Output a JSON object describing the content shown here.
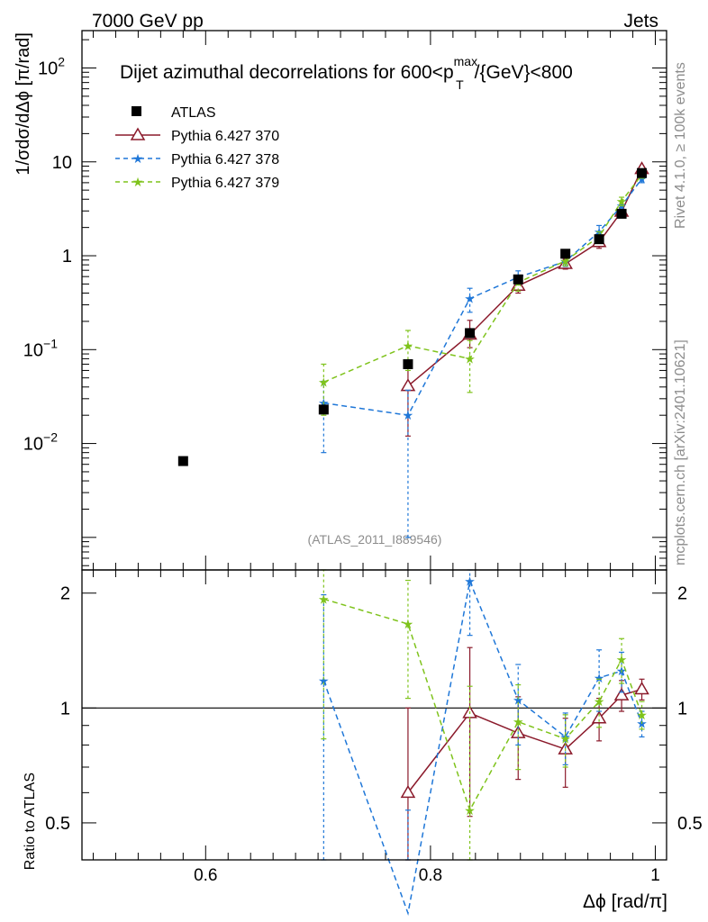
{
  "chart_data": {
    "type": "line",
    "header_left": "7000 GeV pp",
    "header_right": "Jets",
    "title_prefix": "Dijet azimuthal decorrelations for 600<p",
    "title_sup": "max",
    "title_sub": "T",
    "title_suffix": "/{GeV}<800",
    "side_rivet": "Rivet 4.1.0, ≥ 100k events",
    "side_mcplots": "mcplots.cern.ch [arXiv:2401.10621]",
    "analysis_tag": "(ATLAS_2011_I889546)",
    "ylabel": "1/σdσ/dΔϕ [π/rad]",
    "ratio_ylabel": "Ratio to ATLAS",
    "xlabel": "Δϕ [rad/π]",
    "xlim": [
      0.49,
      1.01
    ],
    "ylim": [
      0.00045,
      250
    ],
    "ratio_ylim": [
      0.4,
      2.3
    ],
    "x_ticks": [
      {
        "v": 0.6,
        "label": "0.6"
      },
      {
        "v": 0.8,
        "label": "0.8"
      },
      {
        "v": 1.0,
        "label": "1"
      }
    ],
    "y_ticks": [
      {
        "v": 0.01,
        "base": "10",
        "exp": "−2"
      },
      {
        "v": 0.1,
        "base": "10",
        "exp": "−1"
      },
      {
        "v": 1,
        "base": "1",
        "exp": ""
      },
      {
        "v": 10,
        "base": "10",
        "exp": ""
      },
      {
        "v": 100,
        "base": "10",
        "exp": "2"
      }
    ],
    "ratio_ticks": [
      {
        "v": 0.5,
        "label": "0.5"
      },
      {
        "v": 1,
        "label": "1"
      },
      {
        "v": 2,
        "label": "2"
      }
    ],
    "legend": {
      "data_label": "ATLAS",
      "entries": [
        "Pythia 6.427 370",
        "Pythia 6.427 378",
        "Pythia 6.427 379"
      ]
    },
    "data": {
      "name": "ATLAS",
      "x": [
        0.58,
        0.705,
        0.78,
        0.835,
        0.878,
        0.92,
        0.95,
        0.97,
        0.988
      ],
      "y": [
        0.0065,
        0.023,
        0.07,
        0.15,
        0.56,
        1.05,
        1.5,
        2.8,
        7.6
      ]
    },
    "series": [
      {
        "name": "Pythia 6.427 370",
        "color": "#8b1a2b",
        "dash": "",
        "marker": "triangle",
        "x": [
          0.78,
          0.835,
          0.878,
          0.92,
          0.95,
          0.97,
          0.988
        ],
        "y": [
          0.041,
          0.145,
          0.48,
          0.82,
          1.4,
          2.95,
          8.4
        ],
        "yerr_lo": [
          0.029,
          0.04,
          0.08,
          0.1,
          0.2,
          0.3,
          0.6
        ],
        "yerr_hi": [
          0.025,
          0.06,
          0.09,
          0.1,
          0.2,
          0.3,
          0.6
        ],
        "ratio": [
          0.6,
          0.97,
          0.86,
          0.78,
          0.94,
          1.08,
          1.12
        ],
        "ratio_lo": [
          0.6,
          0.45,
          0.21,
          0.16,
          0.12,
          0.1,
          0.07
        ],
        "ratio_hi": [
          0.4,
          0.47,
          0.21,
          0.16,
          0.12,
          0.1,
          0.07
        ]
      },
      {
        "name": "Pythia 6.427 378",
        "color": "#1f77d8",
        "dash": "6,4",
        "marker": "star",
        "x": [
          0.705,
          0.78,
          0.835,
          0.878,
          0.92,
          0.95,
          0.97,
          0.988
        ],
        "y": [
          0.027,
          0.02,
          0.35,
          0.59,
          0.87,
          1.8,
          3.4,
          6.6
        ],
        "yerr_lo": [
          0.019,
          0.019,
          0.1,
          0.1,
          0.1,
          0.3,
          0.4,
          0.6
        ],
        "yerr_hi": [
          0.019,
          0.017,
          0.1,
          0.1,
          0.1,
          0.3,
          0.4,
          0.6
        ],
        "ratio": [
          1.18,
          0.29,
          2.15,
          1.05,
          0.84,
          1.2,
          1.25,
          0.91
        ],
        "ratio_lo": [
          0.8,
          0.2,
          0.6,
          0.25,
          0.13,
          0.22,
          0.15,
          0.07
        ],
        "ratio_hi": [
          0.8,
          0.25,
          0.5,
          0.25,
          0.13,
          0.22,
          0.15,
          0.07
        ]
      },
      {
        "name": "Pythia 6.427 379",
        "color": "#7fc31c",
        "dash": "6,4",
        "marker": "star",
        "x": [
          0.705,
          0.78,
          0.835,
          0.878,
          0.92,
          0.95,
          0.97,
          0.988
        ],
        "y": [
          0.045,
          0.11,
          0.08,
          0.52,
          0.88,
          1.6,
          3.8,
          7.3
        ],
        "yerr_lo": [
          0.025,
          0.05,
          0.045,
          0.1,
          0.1,
          0.2,
          0.4,
          0.6
        ],
        "yerr_hi": [
          0.025,
          0.05,
          0.045,
          0.1,
          0.1,
          0.2,
          0.4,
          0.6
        ],
        "ratio": [
          1.93,
          1.66,
          0.54,
          0.92,
          0.83,
          1.04,
          1.34,
          0.96
        ],
        "ratio_lo": [
          1.1,
          0.6,
          0.2,
          0.23,
          0.13,
          0.15,
          0.18,
          0.08
        ],
        "ratio_hi": [
          1.1,
          0.5,
          0.6,
          0.23,
          0.13,
          0.15,
          0.18,
          0.08
        ]
      }
    ]
  }
}
